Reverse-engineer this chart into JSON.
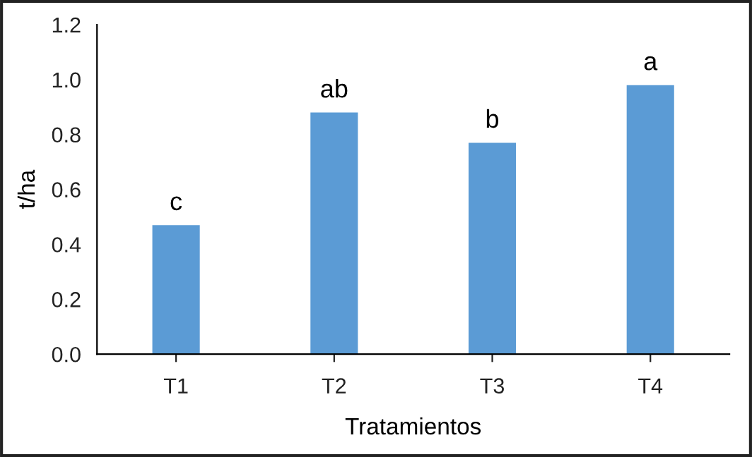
{
  "chart_data": {
    "type": "bar",
    "xlabel": "Tratamientos",
    "ylabel": "t/ha",
    "categories": [
      "T1",
      "T2",
      "T3",
      "T4"
    ],
    "values": [
      0.47,
      0.88,
      0.77,
      0.98
    ],
    "color": "#5b9bd5",
    "ylim": [
      0,
      1.2
    ],
    "yticks": [
      {
        "value": 0,
        "label": "0.0"
      },
      {
        "value": 0.2,
        "label": "0.2"
      },
      {
        "value": 0.4,
        "label": "0.4"
      },
      {
        "value": 0.6,
        "label": "0.6"
      },
      {
        "value": 0.8,
        "label": "0.8"
      },
      {
        "value": 1.0,
        "label": "1.0"
      },
      {
        "value": 1.2,
        "label": "1.2"
      }
    ],
    "grid": false,
    "annotations": [
      {
        "text": "c",
        "x": "T1",
        "y": 0.47
      },
      {
        "text": "ab",
        "x": "T2",
        "y": 0.88
      },
      {
        "text": "b",
        "x": "T3",
        "y": 0.77
      },
      {
        "text": "a",
        "x": "T4",
        "y": 0.98
      }
    ]
  }
}
